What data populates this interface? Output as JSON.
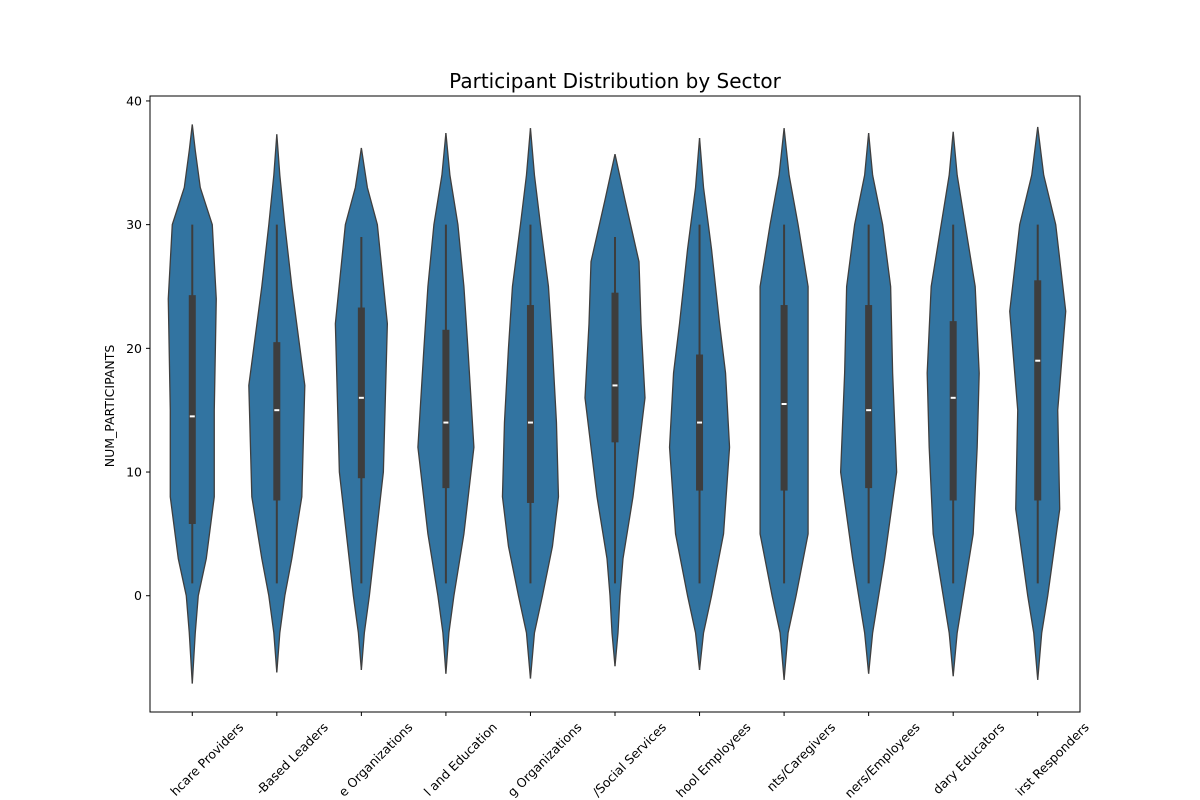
{
  "chart_data": {
    "type": "violin",
    "title": "Participant Distribution by Sector",
    "ylabel": "NUM_PARTICIPANTS",
    "categories": [
      "hcare Providers",
      "-Based Leaders",
      "e Organizations",
      "l and Education",
      "g Organizations",
      "/Social Services",
      "hool Employees",
      "nts/Caregivers",
      "ners/Employees",
      "dary Educators",
      "irst Responders"
    ],
    "color": "#3274a1",
    "box_color": "#3d3d3d",
    "median_color": "#ffffff",
    "ylim": [
      -9.4,
      40.4
    ],
    "yticks": [
      0,
      10,
      20,
      30,
      40
    ],
    "violins": [
      {
        "whisker_low": 1,
        "q1": 5.8,
        "median": 14.5,
        "q3": 24.3,
        "whisker_high": 30,
        "kde_y": [
          -7.1,
          -3,
          0,
          3,
          8,
          15,
          24,
          30,
          33,
          36,
          38.1
        ],
        "density": [
          0,
          3,
          6,
          14,
          22,
          22,
          24,
          20,
          8,
          3,
          0
        ]
      },
      {
        "whisker_low": 1,
        "q1": 7.7,
        "median": 15,
        "q3": 20.5,
        "whisker_high": 30,
        "kde_y": [
          -6.2,
          -3,
          0,
          3,
          8,
          17,
          25,
          30,
          34,
          37.3
        ],
        "density": [
          0,
          3,
          8,
          15,
          25,
          28,
          15,
          8,
          3,
          0
        ]
      },
      {
        "whisker_low": 1,
        "q1": 9.5,
        "median": 16,
        "q3": 23.3,
        "whisker_high": 29,
        "kde_y": [
          -6,
          -3,
          0,
          5,
          10,
          16,
          22,
          30,
          33,
          36.2
        ],
        "density": [
          0,
          3,
          8,
          15,
          22,
          24,
          26,
          16,
          6,
          0
        ]
      },
      {
        "whisker_low": 1,
        "q1": 8.7,
        "median": 14,
        "q3": 21.5,
        "whisker_high": 30,
        "kde_y": [
          -6.3,
          -3,
          0,
          5,
          12,
          20,
          25,
          30,
          34,
          37.4
        ],
        "density": [
          0,
          3,
          8,
          18,
          28,
          22,
          18,
          12,
          4,
          0
        ]
      },
      {
        "whisker_low": 1,
        "q1": 7.5,
        "median": 14,
        "q3": 23.5,
        "whisker_high": 30,
        "kde_y": [
          -6.7,
          -3,
          0,
          4,
          8,
          14,
          20,
          25,
          30,
          34,
          37.8
        ],
        "density": [
          0,
          4,
          12,
          22,
          28,
          26,
          22,
          18,
          10,
          4,
          0
        ]
      },
      {
        "whisker_low": 1,
        "q1": 12.4,
        "median": 17,
        "q3": 24.5,
        "whisker_high": 29,
        "kde_y": [
          -5.7,
          -3,
          0,
          3,
          8,
          16,
          22,
          27,
          32,
          35.7
        ],
        "density": [
          0,
          3,
          5,
          8,
          18,
          30,
          26,
          24,
          10,
          0
        ]
      },
      {
        "whisker_low": 1,
        "q1": 8.5,
        "median": 14,
        "q3": 19.5,
        "whisker_high": 30,
        "kde_y": [
          -6,
          -3,
          0,
          5,
          12,
          18,
          22,
          28,
          33,
          37
        ],
        "density": [
          0,
          4,
          12,
          24,
          30,
          26,
          20,
          12,
          4,
          0
        ]
      },
      {
        "whisker_low": 1,
        "q1": 8.5,
        "median": 15.5,
        "q3": 23.5,
        "whisker_high": 30,
        "kde_y": [
          -6.8,
          -3,
          0,
          5,
          15,
          25,
          30,
          34,
          37.8
        ],
        "density": [
          0,
          4,
          12,
          24,
          24,
          24,
          14,
          5,
          0
        ]
      },
      {
        "whisker_low": 1,
        "q1": 8.7,
        "median": 15,
        "q3": 23.5,
        "whisker_high": 30,
        "kde_y": [
          -6.3,
          -3,
          0,
          3,
          10,
          18,
          25,
          30,
          34,
          37.4
        ],
        "density": [
          0,
          4,
          10,
          16,
          28,
          24,
          22,
          14,
          4,
          0
        ]
      },
      {
        "whisker_low": 1,
        "q1": 7.7,
        "median": 16,
        "q3": 22.2,
        "whisker_high": 30,
        "kde_y": [
          -6.5,
          -3,
          0,
          5,
          12,
          18,
          25,
          30,
          34,
          37.5
        ],
        "density": [
          0,
          4,
          10,
          20,
          24,
          26,
          22,
          12,
          4,
          0
        ]
      },
      {
        "whisker_low": 1,
        "q1": 7.7,
        "median": 19,
        "q3": 25.5,
        "whisker_high": 30,
        "kde_y": [
          -6.8,
          -3,
          0,
          7,
          15,
          23,
          30,
          34,
          37.9
        ],
        "density": [
          0,
          4,
          10,
          22,
          20,
          28,
          18,
          6,
          0
        ]
      }
    ]
  }
}
